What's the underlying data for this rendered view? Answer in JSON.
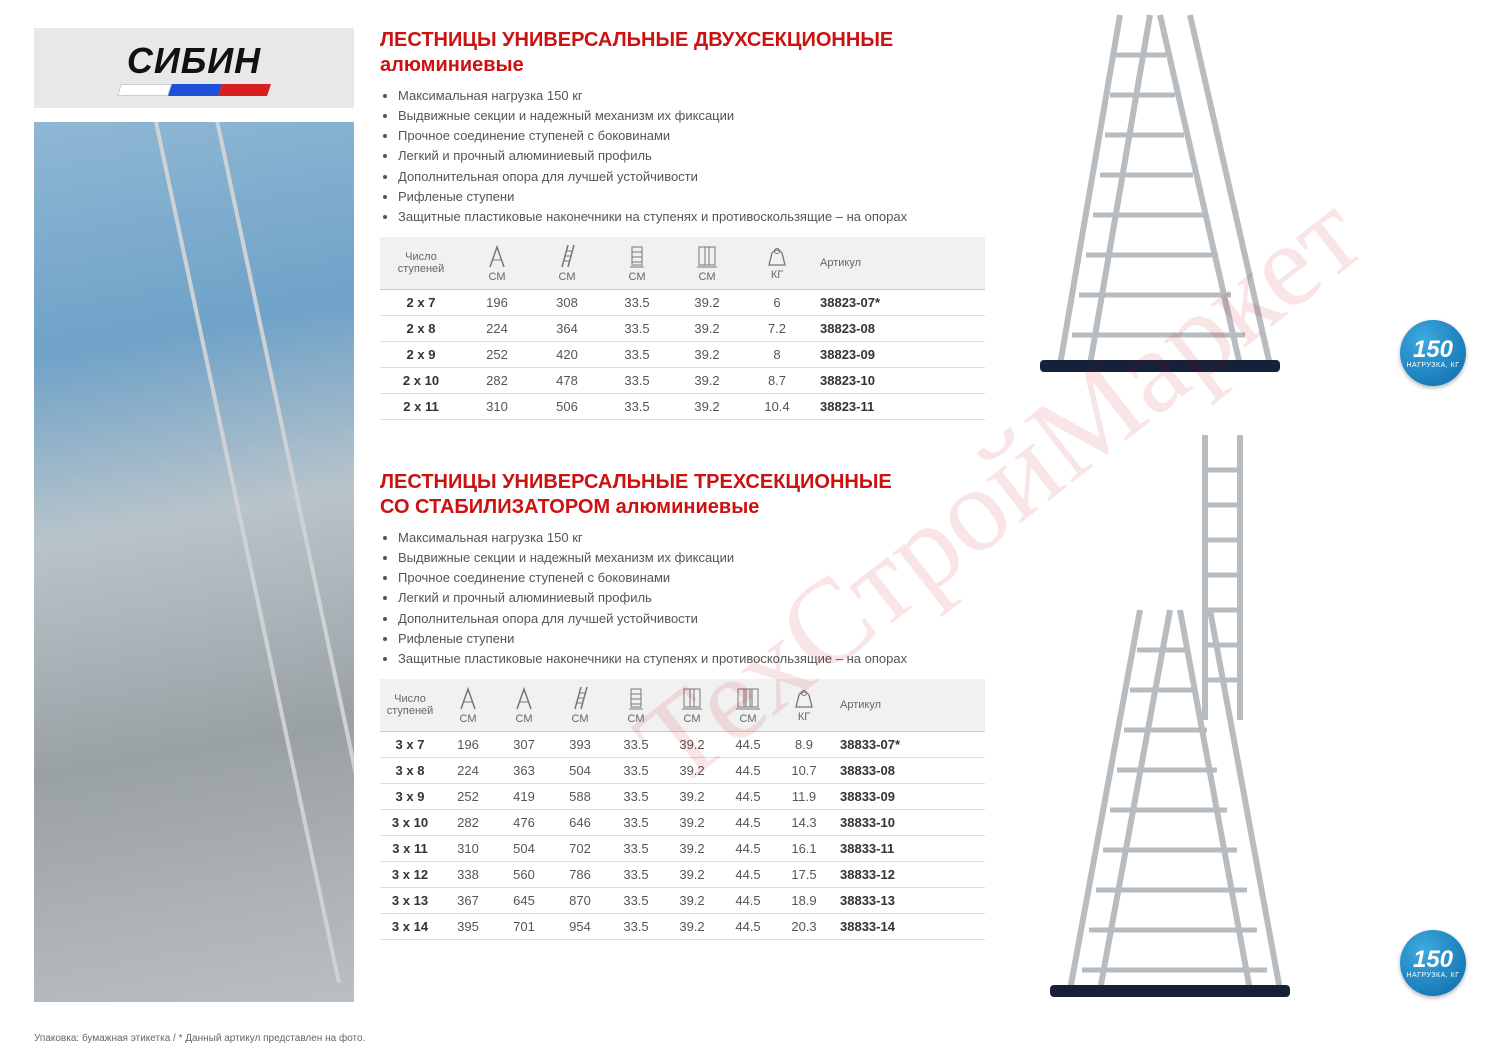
{
  "brand": "СИБИН",
  "flag_colors": [
    "#ffffff",
    "#1e4fd6",
    "#d81f1f"
  ],
  "watermark_text": "ТехСтройМаркет",
  "badge": {
    "value": "150",
    "unit": "НАГРУЗКА, КГ"
  },
  "footnote": "Упаковка: бумажная этикетка  /  * Данный артикул представлен на фото.",
  "section1": {
    "title_line1": "ЛЕСТНИЦЫ УНИВЕРСАЛЬНЫЕ ДВУХСЕКЦИОННЫЕ",
    "title_line2": "алюминиевые",
    "features": [
      "Максимальная нагрузка 150 кг",
      "Выдвижные секции и надежный механизм их фиксации",
      "Прочное соединение ступеней с боковинами",
      "Легкий и прочный алюминиевый профиль",
      "Дополнительная опора для лучшей устойчивости",
      "Рифленые ступени",
      "Защитные пластиковые наконечники на ступенях и противоскользящие – на опорах"
    ],
    "columns": [
      "Число ступеней",
      "СМ",
      "СМ",
      "СМ",
      "СМ",
      "КГ",
      "Артикул"
    ],
    "col_widths": [
      "82px",
      "70px",
      "70px",
      "70px",
      "70px",
      "70px",
      "auto"
    ],
    "rows": [
      [
        "2 x 7",
        "196",
        "308",
        "33.5",
        "39.2",
        "6",
        "38823-07*"
      ],
      [
        "2 x 8",
        "224",
        "364",
        "33.5",
        "39.2",
        "7.2",
        "38823-08"
      ],
      [
        "2 x 9",
        "252",
        "420",
        "33.5",
        "39.2",
        "8",
        "38823-09"
      ],
      [
        "2 x 10",
        "282",
        "478",
        "33.5",
        "39.2",
        "8.7",
        "38823-10"
      ],
      [
        "2 x 11",
        "310",
        "506",
        "33.5",
        "39.2",
        "10.4",
        "38823-11"
      ]
    ]
  },
  "section2": {
    "title_line1": "ЛЕСТНИЦЫ УНИВЕРСАЛЬНЫЕ ТРЕХСЕКЦИОННЫЕ",
    "title_line2": "СО СТАБИЛИЗАТОРОМ алюминиевые",
    "features": [
      "Максимальная нагрузка 150 кг",
      "Выдвижные секции и надежный механизм их фиксации",
      "Прочное соединение ступеней с боковинами",
      "Легкий и прочный алюминиевый профиль",
      "Дополнительная опора для лучшей устойчивости",
      "Рифленые ступени",
      "Защитные пластиковые наконечники на ступенях и противоскользящие – на опорах"
    ],
    "columns": [
      "Число ступеней",
      "СМ",
      "СМ",
      "СМ",
      "СМ",
      "СМ",
      "СМ",
      "КГ",
      "Артикул"
    ],
    "col_widths": [
      "60px",
      "56px",
      "56px",
      "56px",
      "56px",
      "56px",
      "56px",
      "56px",
      "auto"
    ],
    "rows": [
      [
        "3 x 7",
        "196",
        "307",
        "393",
        "33.5",
        "39.2",
        "44.5",
        "8.9",
        "38833-07*"
      ],
      [
        "3 x 8",
        "224",
        "363",
        "504",
        "33.5",
        "39.2",
        "44.5",
        "10.7",
        "38833-08"
      ],
      [
        "3 x 9",
        "252",
        "419",
        "588",
        "33.5",
        "39.2",
        "44.5",
        "11.9",
        "38833-09"
      ],
      [
        "3 x 10",
        "282",
        "476",
        "646",
        "33.5",
        "39.2",
        "44.5",
        "14.3",
        "38833-10"
      ],
      [
        "3 x 11",
        "310",
        "504",
        "702",
        "33.5",
        "39.2",
        "44.5",
        "16.1",
        "38833-11"
      ],
      [
        "3 x 12",
        "338",
        "560",
        "786",
        "33.5",
        "39.2",
        "44.5",
        "17.5",
        "38833-12"
      ],
      [
        "3 x 13",
        "367",
        "645",
        "870",
        "33.5",
        "39.2",
        "44.5",
        "18.9",
        "38833-13"
      ],
      [
        "3 x 14",
        "395",
        "701",
        "954",
        "33.5",
        "39.2",
        "44.5",
        "20.3",
        "38833-14"
      ]
    ]
  },
  "styling": {
    "title_color": "#c11",
    "text_color": "#555",
    "header_bg": "#f1f1f1",
    "row_border": "#ddd",
    "body_font_size": 13
  }
}
